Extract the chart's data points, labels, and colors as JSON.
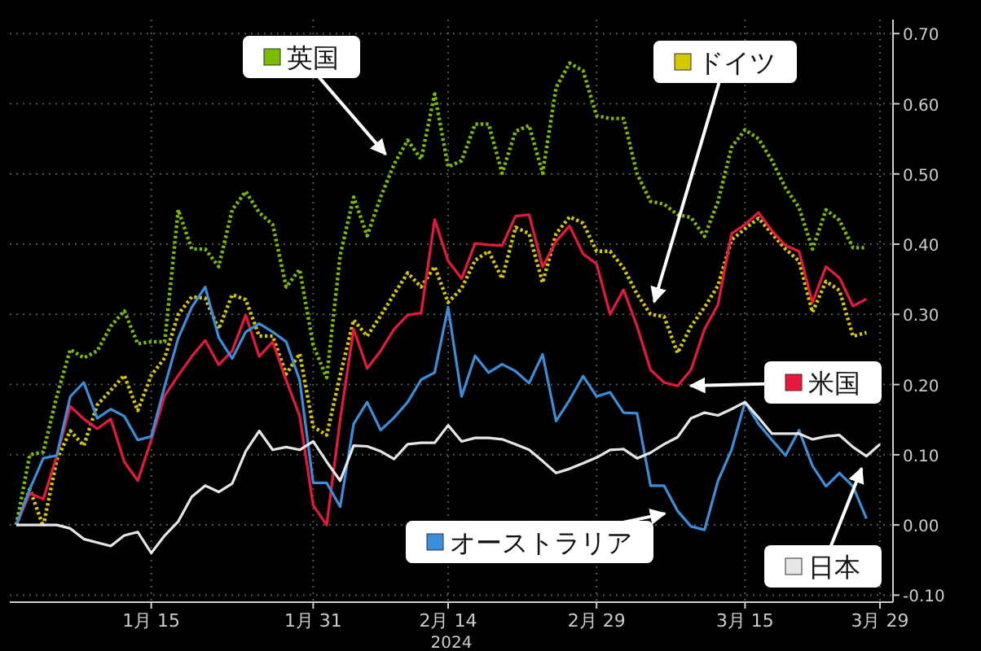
{
  "chart_data": {
    "type": "line",
    "xlabel": "2024",
    "categories": [
      null,
      null,
      null,
      null,
      null,
      null,
      null,
      null,
      null,
      null,
      "1月 15",
      null,
      null,
      null,
      null,
      null,
      null,
      null,
      null,
      null,
      null,
      null,
      "1月 31",
      null,
      null,
      null,
      null,
      null,
      null,
      null,
      null,
      null,
      "2月 14",
      null,
      null,
      null,
      null,
      null,
      null,
      null,
      null,
      null,
      null,
      "2月 29",
      null,
      null,
      null,
      null,
      null,
      null,
      null,
      null,
      null,
      null,
      "3月 15",
      null,
      null,
      null,
      null,
      null,
      null,
      null,
      null,
      null,
      "3月 29"
    ],
    "ylim": [
      -0.11,
      0.72
    ],
    "yticks": [
      {
        "value": -0.1,
        "label": "-0.10"
      },
      {
        "value": 0,
        "label": "0.00"
      },
      {
        "value": 0.1,
        "label": "0.10"
      },
      {
        "value": 0.2,
        "label": "0.20"
      },
      {
        "value": 0.3,
        "label": "0.30"
      },
      {
        "value": 0.4,
        "label": "0.40"
      },
      {
        "value": 0.5,
        "label": "0.50"
      },
      {
        "value": 0.6,
        "label": "0.60"
      },
      {
        "value": 0.7,
        "label": "0.70"
      }
    ],
    "grid": true,
    "legend": "bottom right",
    "series": [
      {
        "name": "英国",
        "color": "#7dbb00",
        "line_style": "dotted",
        "values": [
          0,
          0.1,
          0.104,
          0.183,
          0.25,
          0.238,
          0.248,
          0.283,
          0.305,
          0.258,
          0.261,
          0.261,
          0.449,
          0.393,
          0.393,
          0.368,
          0.449,
          0.475,
          0.445,
          0.428,
          0.339,
          0.364,
          0.256,
          0.21,
          0.384,
          0.467,
          0.412,
          0.467,
          0.514,
          0.548,
          0.521,
          0.614,
          0.51,
          0.519,
          0.571,
          0.571,
          0.501,
          0.561,
          0.569,
          0.501,
          0.623,
          0.658,
          0.647,
          0.583,
          0.579,
          0.579,
          0.5,
          0.461,
          0.457,
          0.442,
          0.438,
          0.411,
          0.461,
          0.538,
          0.563,
          0.55,
          0.519,
          0.48,
          0.452,
          0.393,
          0.449,
          0.434,
          0.395,
          0.395,
          null
        ]
      },
      {
        "name": "ドイツ",
        "color": "#d6c800",
        "line_style": "dotted",
        "values": [
          0,
          0.051,
          -0.002,
          0.093,
          0.134,
          0.113,
          0.171,
          0.192,
          0.213,
          0.163,
          0.213,
          0.238,
          0.3,
          0.325,
          0.323,
          0.279,
          0.328,
          0.321,
          0.269,
          0.269,
          0.215,
          0.244,
          0.14,
          0.128,
          0.213,
          0.292,
          0.269,
          0.298,
          0.329,
          0.359,
          0.339,
          0.368,
          0.317,
          0.337,
          0.377,
          0.39,
          0.351,
          0.424,
          0.415,
          0.345,
          0.415,
          0.439,
          0.43,
          0.39,
          0.39,
          0.366,
          0.329,
          0.3,
          0.297,
          0.245,
          0.283,
          0.31,
          0.341,
          0.406,
          0.422,
          0.437,
          0.415,
          0.393,
          0.376,
          0.303,
          0.347,
          0.334,
          0.269,
          0.274,
          null
        ]
      },
      {
        "name": "米国",
        "color": "#e8173c",
        "line_style": "solid",
        "values": [
          0,
          0.045,
          0.037,
          0.098,
          0.169,
          0.151,
          0.137,
          0.151,
          0.09,
          0.063,
          0.121,
          0.184,
          0.213,
          0.24,
          0.263,
          0.228,
          0.248,
          0.299,
          0.24,
          0.261,
          0.206,
          0.155,
          0.028,
          0.0,
          0.15,
          0.279,
          0.223,
          0.248,
          0.279,
          0.299,
          0.302,
          0.435,
          0.376,
          0.351,
          0.401,
          0.399,
          0.398,
          0.44,
          0.442,
          0.368,
          0.404,
          0.426,
          0.386,
          0.372,
          0.3,
          0.335,
          0.283,
          0.221,
          0.203,
          0.198,
          0.221,
          0.279,
          0.314,
          0.415,
          0.428,
          0.445,
          0.419,
          0.398,
          0.39,
          0.317,
          0.368,
          0.352,
          0.312,
          0.322,
          null
        ]
      },
      {
        "name": "オーストラリア",
        "color": "#3a8fdc",
        "line_style": "solid",
        "values": [
          0,
          0.051,
          0.095,
          0.099,
          0.183,
          0.203,
          0.152,
          0.165,
          0.155,
          0.121,
          0.126,
          0.198,
          0.266,
          0.31,
          0.339,
          0.267,
          0.237,
          0.275,
          0.287,
          0.275,
          0.261,
          0.206,
          0.06,
          0.06,
          0.026,
          0.144,
          0.175,
          0.135,
          0.153,
          0.175,
          0.207,
          0.217,
          0.31,
          0.183,
          0.241,
          0.217,
          0.229,
          0.219,
          0.202,
          0.243,
          0.148,
          0.178,
          0.212,
          0.183,
          0.189,
          0.16,
          0.159,
          0.056,
          0.056,
          0.02,
          -0.002,
          -0.007,
          0.063,
          0.107,
          0.175,
          0.144,
          0.121,
          0.099,
          0.135,
          0.084,
          0.055,
          0.074,
          0.055,
          0.009,
          null
        ]
      },
      {
        "name": "日本",
        "color": "#e6e6e6",
        "line_style": "solid",
        "values": [
          0,
          0,
          0,
          0,
          -0.005,
          -0.02,
          -0.025,
          -0.03,
          -0.015,
          -0.01,
          -0.04,
          -0.015,
          0.005,
          0.04,
          0.056,
          0.047,
          0.059,
          0.105,
          0.134,
          0.107,
          0.111,
          0.107,
          0.119,
          0.09,
          0.063,
          0.113,
          0.112,
          0.105,
          0.094,
          0.115,
          0.117,
          0.117,
          0.142,
          0.119,
          0.124,
          0.124,
          0.122,
          0.115,
          0.107,
          0.091,
          0.074,
          0.08,
          0.088,
          0.096,
          0.107,
          0.108,
          0.095,
          0.103,
          0.115,
          0.125,
          0.152,
          0.16,
          0.156,
          0.165,
          0.175,
          0.153,
          0.13,
          0.13,
          0.13,
          0.122,
          0.126,
          0.128,
          0.111,
          0.098,
          0.115
        ]
      }
    ]
  }
}
